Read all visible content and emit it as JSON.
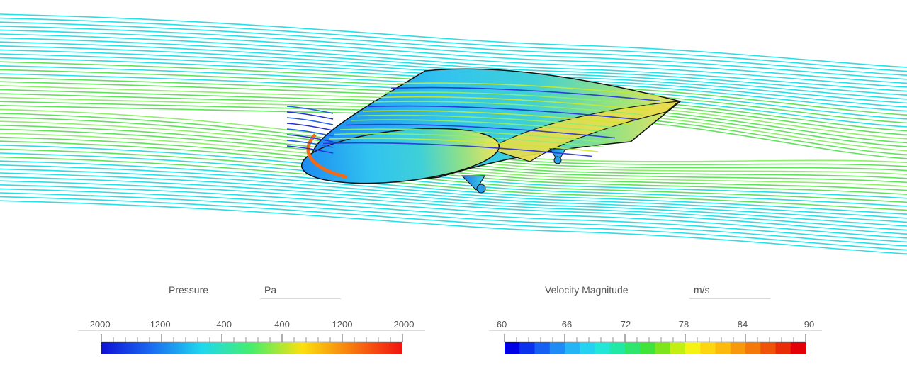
{
  "scene": {
    "object": "wing",
    "streamline_color_map": "velocity",
    "surface_color_map": "pressure"
  },
  "legends": [
    {
      "id": "pressure",
      "title": "Pressure",
      "unit": "Pa",
      "tick_labels": [
        "-2000",
        "-1200",
        "-400",
        "400",
        "1200",
        "2000"
      ],
      "range": [
        -2000,
        2000
      ],
      "style": "continuous",
      "colors": [
        "#0f0fd6",
        "#1a6cf0",
        "#1fd7ef",
        "#47ee6a",
        "#fbe00e",
        "#f7790f",
        "#f21111"
      ]
    },
    {
      "id": "velocity",
      "title": "Velocity Magnitude",
      "unit": "m/s",
      "tick_labels": [
        "60",
        "66",
        "72",
        "78",
        "84",
        "90"
      ],
      "range": [
        60,
        90
      ],
      "style": "banded",
      "colors": [
        "#0000e6",
        "#0a32ee",
        "#1560f2",
        "#1f8cf5",
        "#25b4f5",
        "#26d2f2",
        "#21e6d8",
        "#22e8a6",
        "#2ee66e",
        "#3fe33a",
        "#7de51c",
        "#c2ee12",
        "#f6f314",
        "#fdd610",
        "#fbba0c",
        "#f8990b",
        "#f4780a",
        "#ef5209",
        "#ea2b08",
        "#e40007"
      ]
    }
  ]
}
